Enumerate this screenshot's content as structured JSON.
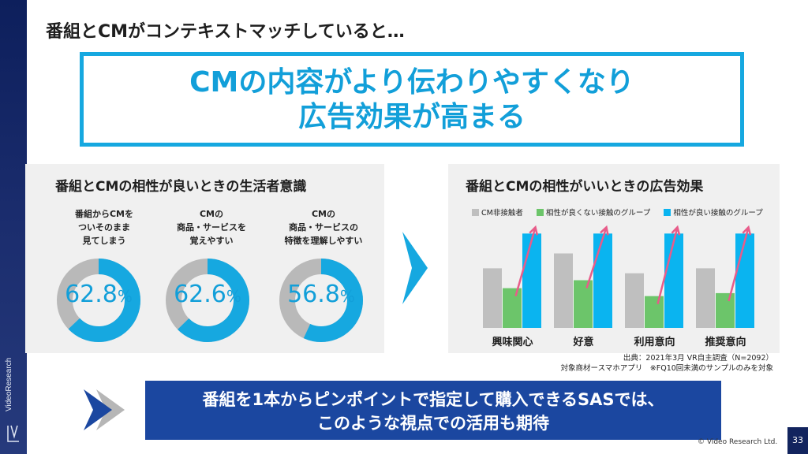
{
  "headline": "番組とCMがコンテキストマッチしていると…",
  "message": {
    "line1": "CMの内容がより伝わりやすくなり",
    "line2": "広告効果が高まる"
  },
  "left_panel": {
    "title": "番組とCMの相性が良いときの生活者意識",
    "donuts": [
      {
        "label_lines": [
          "番組からCMを",
          "ついそのまま",
          "見てしまう"
        ],
        "value": "62.8",
        "pct": "%",
        "fraction": 0.628
      },
      {
        "label_lines": [
          "CMの",
          "商品・サービスを",
          "覚えやすい"
        ],
        "value": "62.6",
        "pct": "%",
        "fraction": 0.626
      },
      {
        "label_lines": [
          "CMの",
          "商品・サービスの",
          "特徴を理解しやすい"
        ],
        "value": "56.8",
        "pct": "%",
        "fraction": 0.568
      }
    ],
    "colors": {
      "filled": "#16a8e0",
      "rest": "#b9b9b9"
    }
  },
  "right_panel": {
    "title": "番組とCMの相性がいいときの広告効果",
    "legend": [
      {
        "name": "CM非接触者",
        "color": "#bfbfbf"
      },
      {
        "name": "相性が良くない接触のグループ",
        "color": "#6cc56a"
      },
      {
        "name": "相性が良い接触のグループ",
        "color": "#0ab4f0"
      }
    ]
  },
  "chart_data": {
    "type": "bar",
    "categories": [
      "興味関心",
      "好意",
      "利用意向",
      "推奨意向"
    ],
    "series": [
      {
        "name": "CM非接触者",
        "values": [
          0.6,
          0.75,
          0.55,
          0.6
        ]
      },
      {
        "name": "相性が良くない接触のグループ",
        "values": [
          0.4,
          0.48,
          0.32,
          0.35
        ]
      },
      {
        "name": "相性が良い接触のグループ",
        "values": [
          0.95,
          0.95,
          0.95,
          0.95
        ]
      }
    ],
    "title": "",
    "xlabel": "",
    "ylabel": "",
    "ylim": [
      0,
      1
    ],
    "grid": false,
    "legend_position": "top"
  },
  "source": {
    "line1": "出典：2021年3月 VR自主調査（N=2092）",
    "line2": "対象商材ースマホアプリ　※FQ10回未満のサンプルのみを対象"
  },
  "callout": {
    "line1": "番組を1本からピンポイントで指定して購入できるSASでは、",
    "line2": "このような視点での活用も期待"
  },
  "brand": "VideoResearch",
  "copyright": "© Video Research Ltd.",
  "page_number": "33",
  "colors": {
    "accent": "#16a8e0",
    "navy": "#1b47a0",
    "arrow": "#e85c8a"
  }
}
